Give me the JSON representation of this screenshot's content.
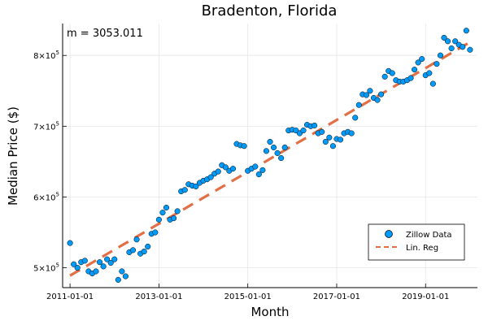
{
  "chart_data": {
    "type": "scatter",
    "title": "Bradenton, Florida",
    "xlabel": "Month",
    "ylabel": "Median Price ($)",
    "annotation": "m = 3053.011",
    "x_ticks": [
      "2011-01-01",
      "2013-01-01",
      "2015-01-01",
      "2017-01-01",
      "2019-01-01"
    ],
    "y_ticks": [
      {
        "value": 500000,
        "mantissa": "5",
        "exponent": "5"
      },
      {
        "value": 600000,
        "mantissa": "6",
        "exponent": "5"
      },
      {
        "value": 700000,
        "mantissa": "7",
        "exponent": "5"
      },
      {
        "value": 800000,
        "mantissa": "8",
        "exponent": "5"
      }
    ],
    "y_tick_times": "×10",
    "ylim": [
      472000,
      845000
    ],
    "xlim_months": [
      -2,
      110
    ],
    "grid": true,
    "legend_position": "bottom-right",
    "colors": {
      "points": "#009AF9",
      "point_edge": "#000000",
      "regression": "#E26F46"
    },
    "series": [
      {
        "name": "Zillow Data",
        "kind": "scatter",
        "start_date": "2011-01-01",
        "monthly_values": [
          535000,
          505000,
          500000,
          508000,
          510000,
          495000,
          492000,
          495000,
          508000,
          502000,
          512000,
          507000,
          512000,
          483000,
          495000,
          488000,
          522000,
          525000,
          540000,
          520000,
          523000,
          530000,
          548000,
          550000,
          568000,
          578000,
          585000,
          568000,
          570000,
          580000,
          608000,
          610000,
          618000,
          616000,
          615000,
          620000,
          623000,
          625000,
          628000,
          633000,
          636000,
          645000,
          642000,
          637000,
          640000,
          675000,
          673000,
          672000,
          637000,
          640000,
          643000,
          632000,
          638000,
          665000,
          678000,
          670000,
          662000,
          655000,
          670000,
          694000,
          695000,
          694000,
          690000,
          694000,
          702000,
          700000,
          701000,
          690000,
          692000,
          678000,
          684000,
          672000,
          682000,
          681000,
          690000,
          692000,
          690000,
          712000,
          730000,
          745000,
          744000,
          750000,
          740000,
          737000,
          745000,
          770000,
          778000,
          775000,
          765000,
          763000,
          763000,
          765000,
          768000,
          780000,
          790000,
          795000,
          772000,
          775000,
          760000,
          788000,
          800000,
          825000,
          820000,
          810000,
          820000,
          815000,
          812000,
          835000,
          808000
        ]
      },
      {
        "name": "Lin. Reg",
        "kind": "line",
        "slope_per_month": 3053.011,
        "intercept": 489000
      }
    ]
  }
}
